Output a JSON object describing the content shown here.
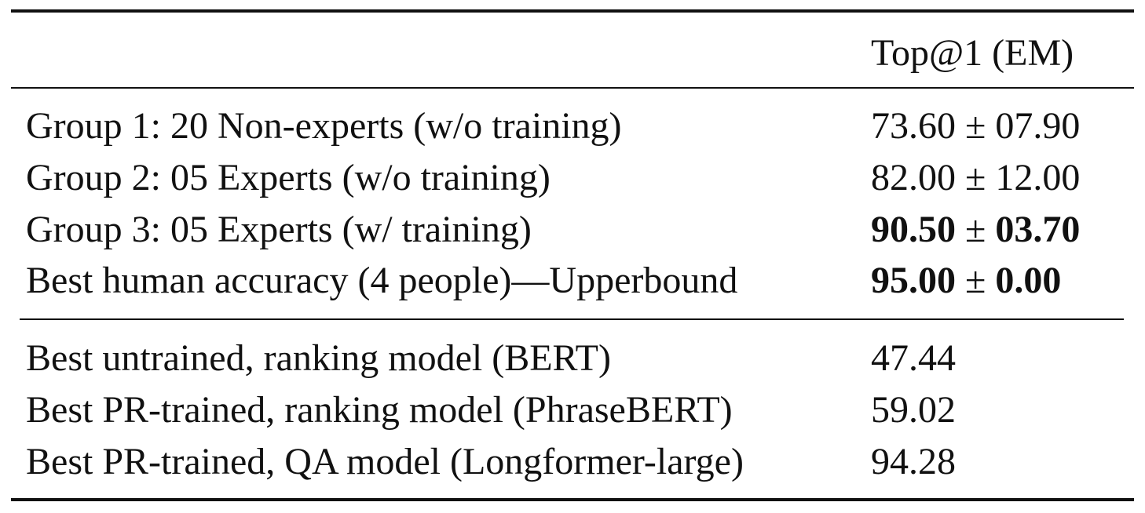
{
  "table": {
    "header": {
      "label": "",
      "value": "Top@1 (EM)"
    },
    "human_rows": [
      {
        "label": "Group 1: 20 Non-experts (w/o training)",
        "mean": "73.60",
        "pm": "±",
        "std": "07.90",
        "bold": false
      },
      {
        "label": "Group 2: 05 Experts (w/o training)",
        "mean": "82.00",
        "pm": "±",
        "std": "12.00",
        "bold": false
      },
      {
        "label": "Group 3: 05 Experts (w/ training)",
        "mean": "90.50",
        "pm": "±",
        "std": "03.70",
        "bold": true
      },
      {
        "label": "Best human accuracy (4 people)—Upperbound",
        "mean": "95.00",
        "pm": "±",
        "std": "0.00",
        "bold": true
      }
    ],
    "model_rows": [
      {
        "label": "Best untrained, ranking model (BERT)",
        "value": "47.44"
      },
      {
        "label": "Best PR-trained, ranking model (PhraseBERT)",
        "value": "59.02"
      },
      {
        "label": "Best PR-trained, QA model (Longformer-large)",
        "value": "94.28"
      }
    ]
  }
}
